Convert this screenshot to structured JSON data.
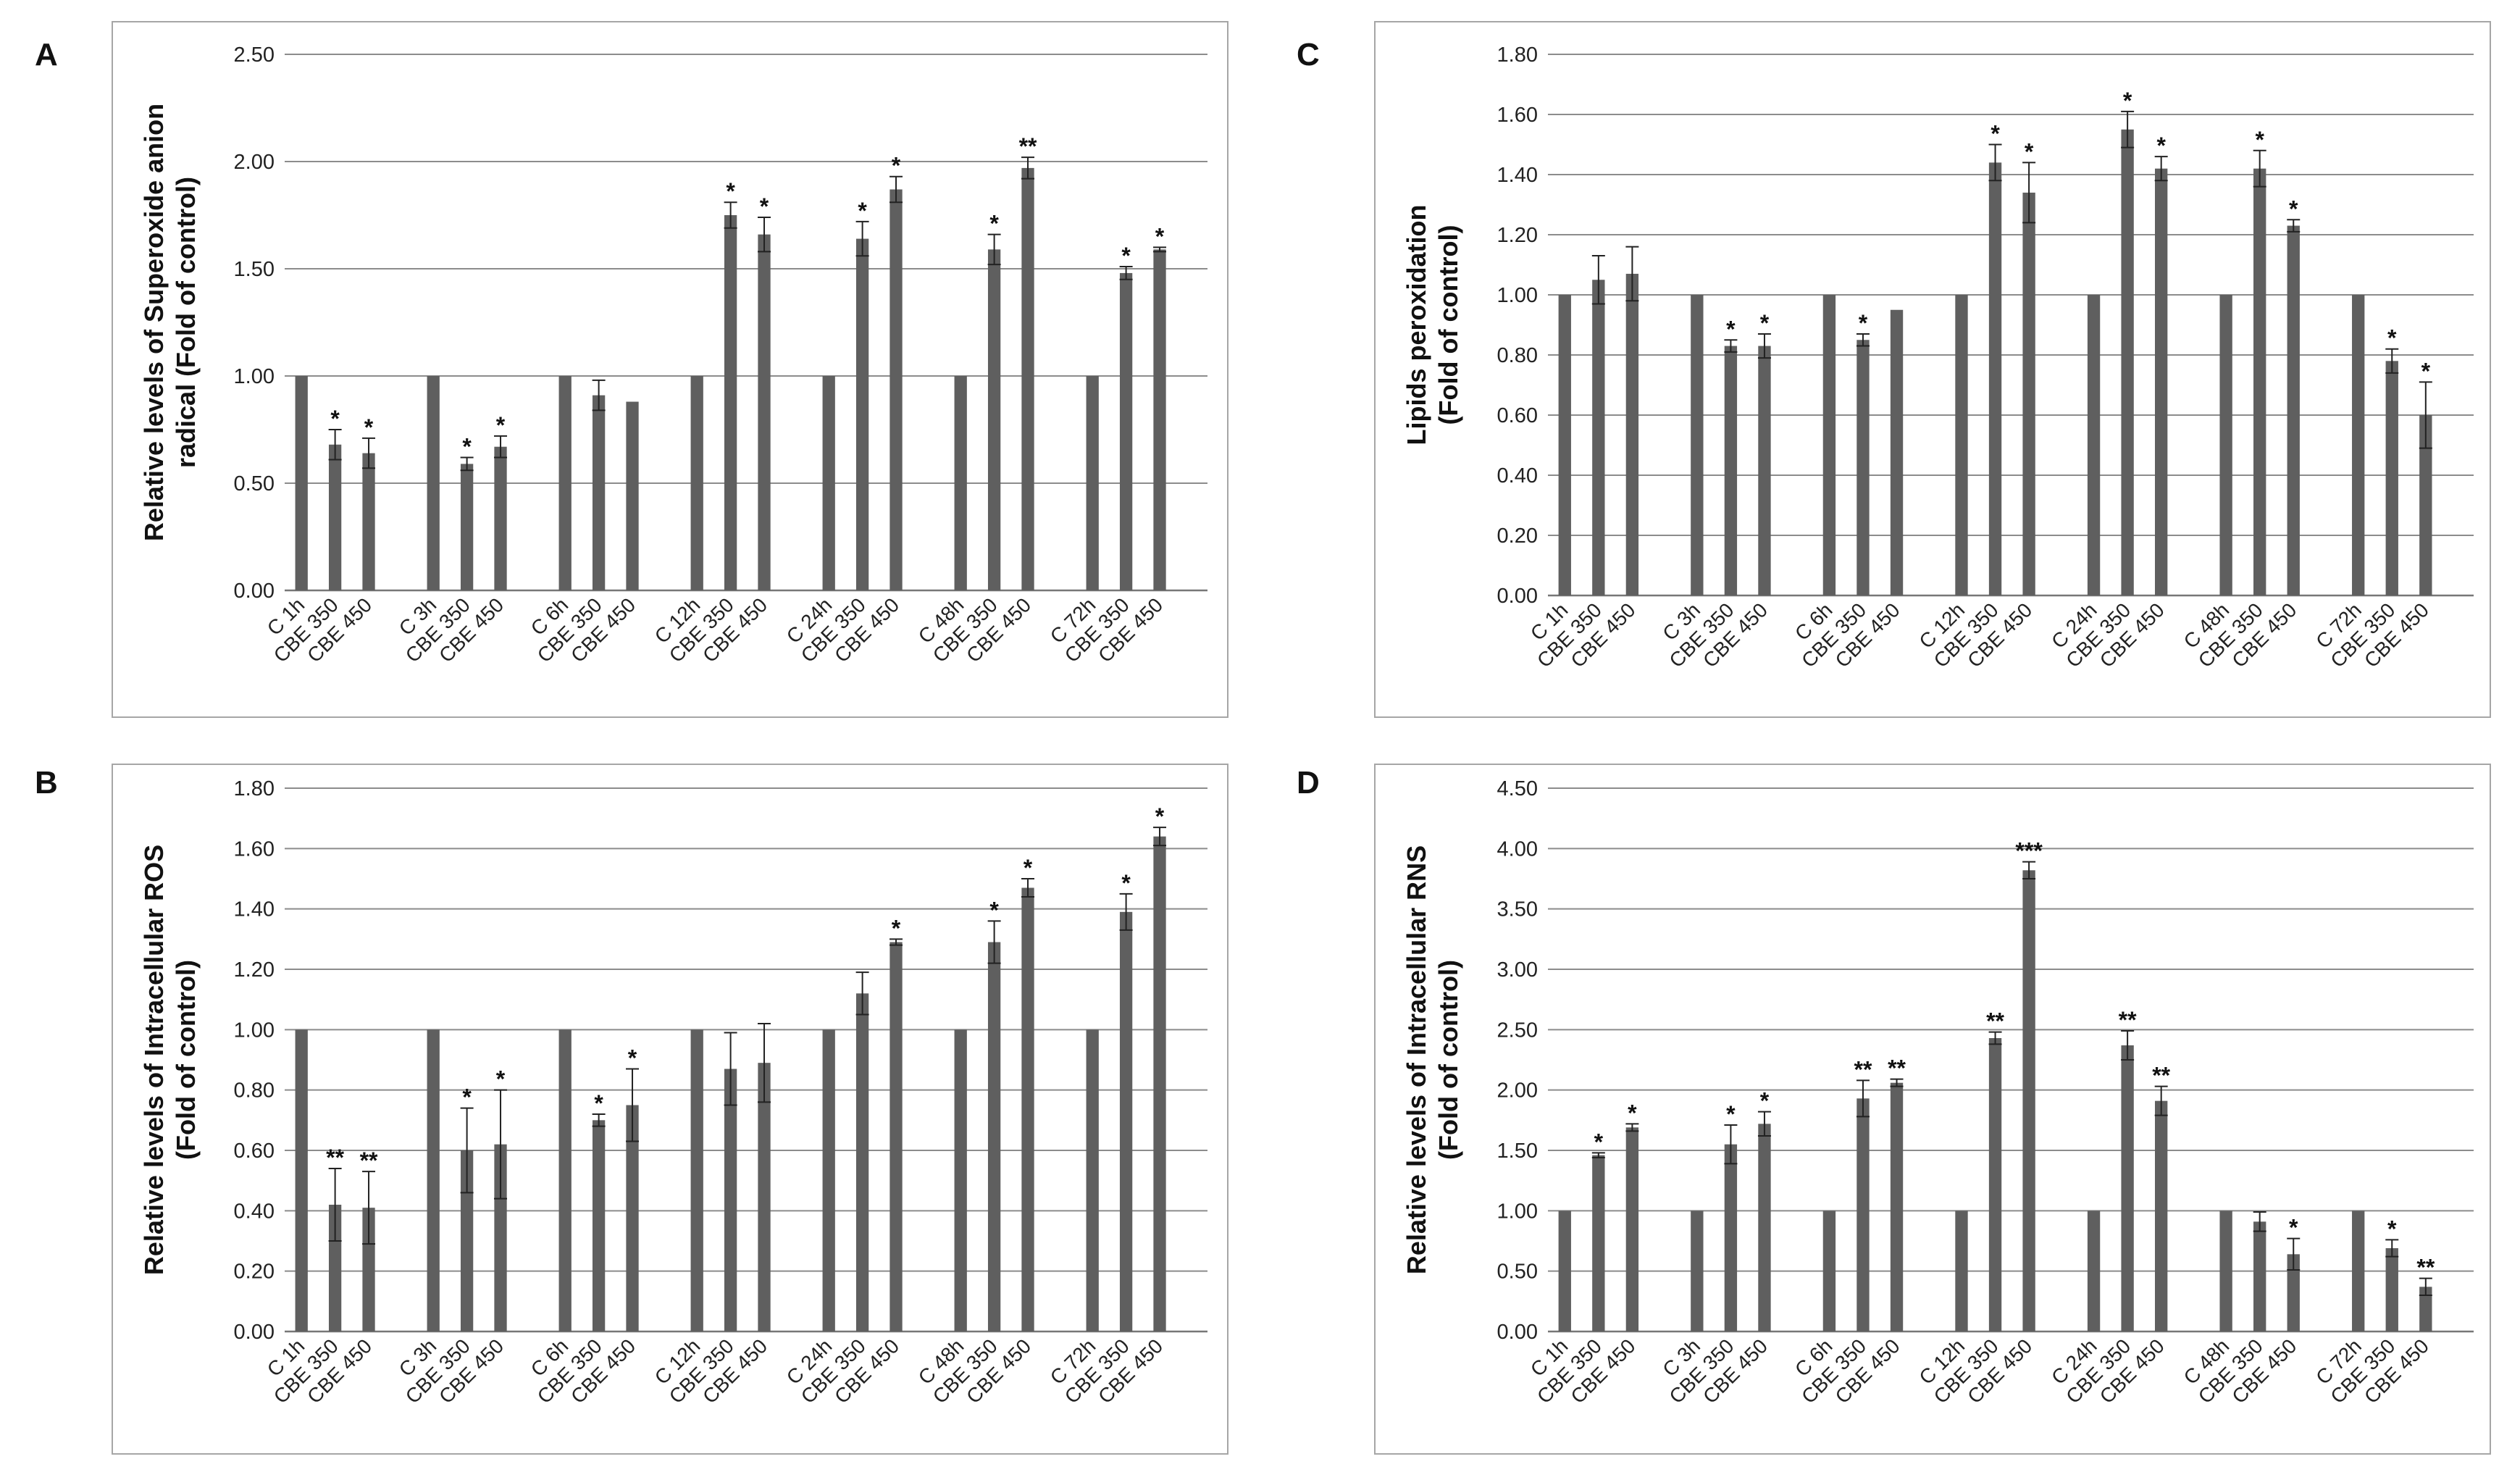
{
  "chart_data": [
    {
      "panel": "A",
      "type": "bar",
      "ylabel": [
        "Relative levels of Superoxide anion",
        "radical (Fold of control)"
      ],
      "ylim": [
        0,
        2.5
      ],
      "yticks": [
        "0.00",
        "0.50",
        "1.00",
        "1.50",
        "2.00",
        "2.50"
      ],
      "grid": true,
      "groups": [
        {
          "labels": [
            "C 1h",
            "CBE 350",
            "CBE 450"
          ],
          "values": [
            1.0,
            0.68,
            0.64
          ],
          "errors": [
            0,
            0.07,
            0.07
          ],
          "sig": [
            "",
            "*",
            "*"
          ]
        },
        {
          "labels": [
            "C 3h",
            "CBE 350",
            "CBE 450"
          ],
          "values": [
            1.0,
            0.59,
            0.67
          ],
          "errors": [
            0,
            0.03,
            0.05
          ],
          "sig": [
            "",
            "*",
            "*"
          ]
        },
        {
          "labels": [
            "C 6h",
            "CBE 350",
            "CBE 450"
          ],
          "values": [
            1.0,
            0.91,
            0.88
          ],
          "errors": [
            0,
            0.07,
            0
          ],
          "sig": [
            "",
            "",
            ""
          ]
        },
        {
          "labels": [
            "C 12h",
            "CBE 350",
            "CBE 450"
          ],
          "values": [
            1.0,
            1.75,
            1.66
          ],
          "errors": [
            0,
            0.06,
            0.08
          ],
          "sig": [
            "",
            "*",
            "*"
          ]
        },
        {
          "labels": [
            "C 24h",
            "CBE 350",
            "CBE 450"
          ],
          "values": [
            1.0,
            1.64,
            1.87
          ],
          "errors": [
            0,
            0.08,
            0.06
          ],
          "sig": [
            "",
            "*",
            "*"
          ]
        },
        {
          "labels": [
            "C 48h",
            "CBE 350",
            "CBE 450"
          ],
          "values": [
            1.0,
            1.59,
            1.97
          ],
          "errors": [
            0,
            0.07,
            0.05
          ],
          "sig": [
            "",
            "*",
            "**"
          ]
        },
        {
          "labels": [
            "C 72h",
            "CBE 350",
            "CBE 450"
          ],
          "values": [
            1.0,
            1.48,
            1.59
          ],
          "errors": [
            0,
            0.03,
            0.01
          ],
          "sig": [
            "",
            "*",
            "*"
          ]
        }
      ]
    },
    {
      "panel": "B",
      "type": "bar",
      "ylabel": [
        "Relative levels of Intracellular ROS",
        "(Fold of control)"
      ],
      "ylim": [
        0,
        1.8
      ],
      "yticks": [
        "0.00",
        "0.20",
        "0.40",
        "0.60",
        "0.80",
        "1.00",
        "1.20",
        "1.40",
        "1.60",
        "1.80"
      ],
      "grid": true,
      "groups": [
        {
          "labels": [
            "C 1h",
            "CBE 350",
            "CBE 450"
          ],
          "values": [
            1.0,
            0.42,
            0.41
          ],
          "errors": [
            0,
            0.12,
            0.12
          ],
          "sig": [
            "",
            "**",
            "**"
          ]
        },
        {
          "labels": [
            "C 3h",
            "CBE 350",
            "CBE 450"
          ],
          "values": [
            1.0,
            0.6,
            0.62
          ],
          "errors": [
            0,
            0.14,
            0.18
          ],
          "sig": [
            "",
            "*",
            "*"
          ]
        },
        {
          "labels": [
            "C 6h",
            "CBE 350",
            "CBE 450"
          ],
          "values": [
            1.0,
            0.7,
            0.75
          ],
          "errors": [
            0,
            0.02,
            0.12
          ],
          "sig": [
            "",
            "*",
            "*"
          ]
        },
        {
          "labels": [
            "C 12h",
            "CBE 350",
            "CBE 450"
          ],
          "values": [
            1.0,
            0.87,
            0.89
          ],
          "errors": [
            0,
            0.12,
            0.13
          ],
          "sig": [
            "",
            "",
            ""
          ]
        },
        {
          "labels": [
            "C 24h",
            "CBE 350",
            "CBE 450"
          ],
          "values": [
            1.0,
            1.12,
            1.29
          ],
          "errors": [
            0,
            0.07,
            0.01
          ],
          "sig": [
            "",
            "",
            "*"
          ]
        },
        {
          "labels": [
            "C 48h",
            "CBE 350",
            "CBE 450"
          ],
          "values": [
            1.0,
            1.29,
            1.47
          ],
          "errors": [
            0,
            0.07,
            0.03
          ],
          "sig": [
            "",
            "*",
            "*"
          ]
        },
        {
          "labels": [
            "C 72h",
            "CBE 350",
            "CBE 450"
          ],
          "values": [
            1.0,
            1.39,
            1.64
          ],
          "errors": [
            0,
            0.06,
            0.03
          ],
          "sig": [
            "",
            "*",
            "*"
          ]
        }
      ]
    },
    {
      "panel": "C",
      "type": "bar",
      "ylabel": [
        "Lipids peroxidation",
        "(Fold of control)"
      ],
      "ylim": [
        0,
        1.8
      ],
      "yticks": [
        "0.00",
        "0.20",
        "0.40",
        "0.60",
        "0.80",
        "1.00",
        "1.20",
        "1.40",
        "1.60",
        "1.80"
      ],
      "grid": true,
      "groups": [
        {
          "labels": [
            "C 1h",
            "CBE 350",
            "CBE 450"
          ],
          "values": [
            1.0,
            1.05,
            1.07
          ],
          "errors": [
            0,
            0.08,
            0.09
          ],
          "sig": [
            "",
            "",
            ""
          ]
        },
        {
          "labels": [
            "C 3h",
            "CBE 350",
            "CBE 450"
          ],
          "values": [
            1.0,
            0.83,
            0.83
          ],
          "errors": [
            0,
            0.02,
            0.04
          ],
          "sig": [
            "",
            "*",
            "*"
          ]
        },
        {
          "labels": [
            "C 6h",
            "CBE 350",
            "CBE 450"
          ],
          "values": [
            1.0,
            0.85,
            0.95
          ],
          "errors": [
            0,
            0.02,
            0
          ],
          "sig": [
            "",
            "*",
            ""
          ]
        },
        {
          "labels": [
            "C 12h",
            "CBE 350",
            "CBE 450"
          ],
          "values": [
            1.0,
            1.44,
            1.34
          ],
          "errors": [
            0,
            0.06,
            0.1
          ],
          "sig": [
            "",
            "*",
            "*"
          ]
        },
        {
          "labels": [
            "C 24h",
            "CBE 350",
            "CBE 450"
          ],
          "values": [
            1.0,
            1.55,
            1.42
          ],
          "errors": [
            0,
            0.06,
            0.04
          ],
          "sig": [
            "",
            "*",
            "*"
          ]
        },
        {
          "labels": [
            "C 48h",
            "CBE 350",
            "CBE 450"
          ],
          "values": [
            1.0,
            1.42,
            1.23
          ],
          "errors": [
            0,
            0.06,
            0.02
          ],
          "sig": [
            "",
            "*",
            "*"
          ]
        },
        {
          "labels": [
            "C 72h",
            "CBE 350",
            "CBE 450"
          ],
          "values": [
            1.0,
            0.78,
            0.6
          ],
          "errors": [
            0,
            0.04,
            0.11
          ],
          "sig": [
            "",
            "*",
            "*"
          ]
        }
      ]
    },
    {
      "panel": "D",
      "type": "bar",
      "ylabel": [
        "Relative levels of Intracellular RNS",
        "(Fold of control)"
      ],
      "ylim": [
        0,
        4.5
      ],
      "yticks": [
        "0.00",
        "0.50",
        "1.00",
        "1.50",
        "2.00",
        "2.50",
        "3.00",
        "3.50",
        "4.00",
        "4.50"
      ],
      "grid": true,
      "groups": [
        {
          "labels": [
            "C 1h",
            "CBE 350",
            "CBE 450"
          ],
          "values": [
            1.0,
            1.46,
            1.69
          ],
          "errors": [
            0,
            0.02,
            0.03
          ],
          "sig": [
            "",
            "*",
            "*"
          ]
        },
        {
          "labels": [
            "C 3h",
            "CBE 350",
            "CBE 450"
          ],
          "values": [
            1.0,
            1.55,
            1.72
          ],
          "errors": [
            0,
            0.16,
            0.1
          ],
          "sig": [
            "",
            "*",
            "*"
          ]
        },
        {
          "labels": [
            "C 6h",
            "CBE 350",
            "CBE 450"
          ],
          "values": [
            1.0,
            1.93,
            2.06
          ],
          "errors": [
            0,
            0.15,
            0.03
          ],
          "sig": [
            "",
            "**",
            "**"
          ]
        },
        {
          "labels": [
            "C 12h",
            "CBE 350",
            "CBE 450"
          ],
          "values": [
            1.0,
            2.43,
            3.82
          ],
          "errors": [
            0,
            0.05,
            0.07
          ],
          "sig": [
            "",
            "**",
            "***"
          ]
        },
        {
          "labels": [
            "C 24h",
            "CBE 350",
            "CBE 450"
          ],
          "values": [
            1.0,
            2.37,
            1.91
          ],
          "errors": [
            0,
            0.12,
            0.12
          ],
          "sig": [
            "",
            "**",
            "**"
          ]
        },
        {
          "labels": [
            "C 48h",
            "CBE 350",
            "CBE 450"
          ],
          "values": [
            1.0,
            0.91,
            0.64
          ],
          "errors": [
            0,
            0.08,
            0.13
          ],
          "sig": [
            "",
            "",
            "*"
          ]
        },
        {
          "labels": [
            "C 72h",
            "CBE 350",
            "CBE 450"
          ],
          "values": [
            1.0,
            0.69,
            0.37
          ],
          "errors": [
            0,
            0.07,
            0.07
          ],
          "sig": [
            "",
            "*",
            "**"
          ]
        }
      ]
    }
  ],
  "colors": {
    "bar": "#5f5f5f",
    "grid": "#8c8c8c",
    "frame": "#a6a6a6",
    "text": "#222222"
  }
}
